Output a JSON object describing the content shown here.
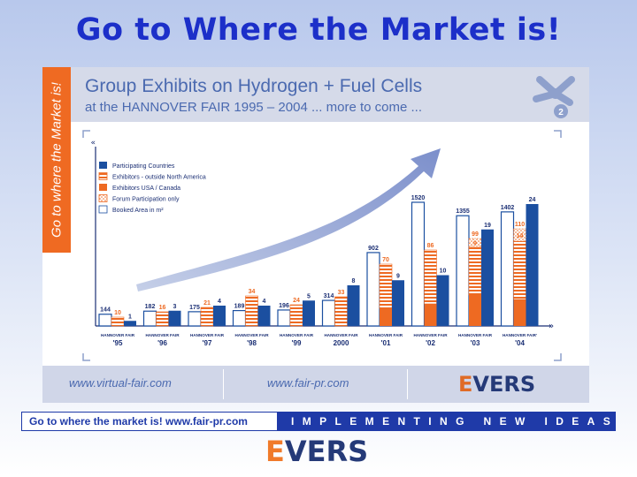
{
  "headline": "Go to Where the Market is!",
  "side_tab": "Go to where the Market is!",
  "header": {
    "title": "Group Exhibits on Hydrogen + Fuel Cells",
    "subtitle": "at the HANNOVER FAIR 1995 – 2004 ... more to come ..."
  },
  "logo": {
    "number": "2"
  },
  "chart_data": {
    "type": "bar",
    "categories": [
      "'95",
      "'96",
      "'97",
      "'98",
      "'99",
      "2000",
      "'01",
      "'02",
      "'03",
      "'04"
    ],
    "category_prefix": "HANNOVER FAIR",
    "category_prefix_last": "HANNOVER FAIR'",
    "series": [
      {
        "name": "Participating Countries",
        "color": "#1b4fa0",
        "pattern": "solid",
        "values": [
          1,
          3,
          4,
          4,
          5,
          8,
          9,
          10,
          19,
          24
        ],
        "labels": [
          "1",
          "3",
          "4",
          "4",
          "5",
          "8",
          "9",
          "10",
          "19",
          "24"
        ]
      },
      {
        "name": "Exhibitors - outside North America",
        "color": "#ee6a22",
        "pattern": "hatched",
        "values": [
          10,
          16,
          21,
          34,
          24,
          33,
          70,
          86,
          99,
          110
        ],
        "labels": [
          "10",
          "16",
          "21",
          "34",
          "24",
          "33",
          "70",
          "86",
          "99",
          "110"
        ]
      },
      {
        "name": "Exhibitors USA / Canada",
        "color": "#ee6a22",
        "pattern": "solid",
        "values": [
          0,
          0,
          0,
          0,
          0,
          0,
          20,
          25,
          35,
          30
        ],
        "labels": [
          "",
          "",
          "",
          "",
          "",
          "",
          "",
          "",
          "",
          ""
        ]
      },
      {
        "name": "Forum Participation only",
        "color": "#ee6a22",
        "pattern": "dotted",
        "values": [
          0,
          0,
          0,
          0,
          0,
          0,
          0,
          0,
          9,
          14
        ],
        "labels": [
          "",
          "",
          "",
          "",
          "",
          "",
          "",
          "",
          "9",
          "14"
        ]
      },
      {
        "name": "Booked Area in m²",
        "color": "#1b4fa0",
        "pattern": "outline",
        "values": [
          144,
          182,
          175,
          189,
          196,
          314,
          902,
          1520,
          1355,
          1402
        ],
        "labels": [
          "144",
          "182",
          "175",
          "189",
          "196",
          "314",
          "902",
          "1520",
          "1355",
          "1402"
        ]
      }
    ]
  },
  "footer": {
    "link1": "www.virtual-fair.com",
    "link2": "www.fair-pr.com",
    "logo": "EVERS",
    "logo_stripe": "E",
    "logo_rest": "VERS"
  },
  "bottom_bar": {
    "left": "Go to where the market is!   www.fair-pr.com",
    "right": "IMPLEMENTING NEW IDEAS"
  },
  "bottom_logo": {
    "stripe": "E",
    "rest": "VERS"
  }
}
